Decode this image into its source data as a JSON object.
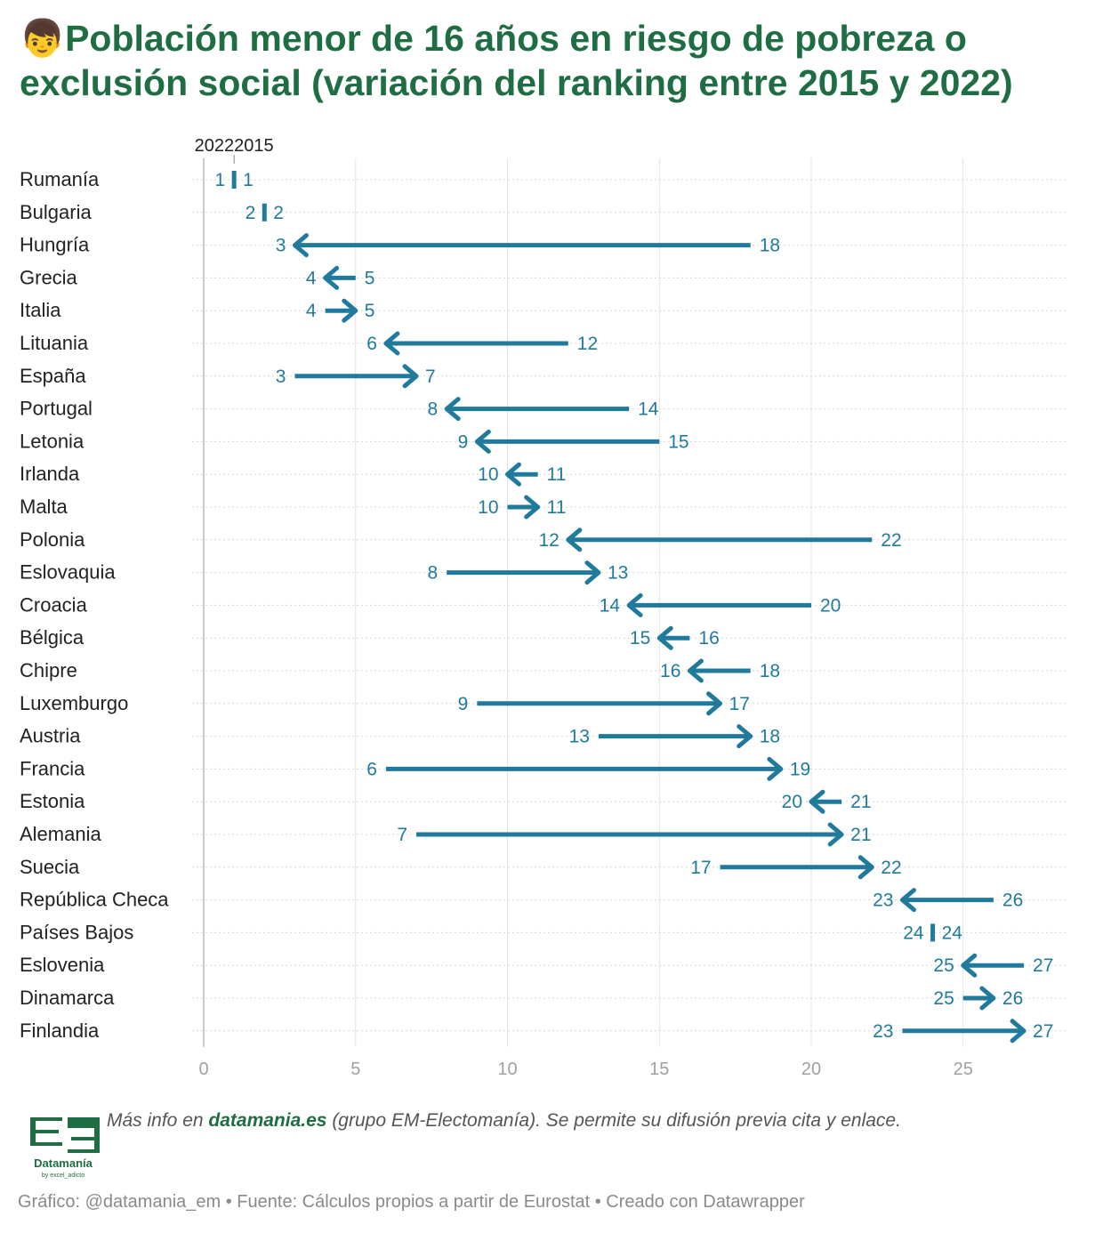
{
  "header": {
    "emoji": "👦",
    "title": "Población menor de 16 años en riesgo de pobreza o exclusión social (variación del ranking entre 2015 y 2022)"
  },
  "chart_data": {
    "type": "arrow-range",
    "series_labels": {
      "from": "2015",
      "to": "2022"
    },
    "xlim": [
      0,
      28
    ],
    "xticks": [
      0,
      5,
      10,
      15,
      20,
      25
    ],
    "color": "#1f7a9c",
    "rows": [
      {
        "country": "Rumanía",
        "from": 1,
        "to": 1
      },
      {
        "country": "Bulgaria",
        "from": 2,
        "to": 2
      },
      {
        "country": "Hungría",
        "from": 18,
        "to": 3
      },
      {
        "country": "Grecia",
        "from": 5,
        "to": 4
      },
      {
        "country": "Italia",
        "from": 4,
        "to": 5
      },
      {
        "country": "Lituania",
        "from": 12,
        "to": 6
      },
      {
        "country": "España",
        "from": 3,
        "to": 7
      },
      {
        "country": "Portugal",
        "from": 14,
        "to": 8
      },
      {
        "country": "Letonia",
        "from": 15,
        "to": 9
      },
      {
        "country": "Irlanda",
        "from": 11,
        "to": 10
      },
      {
        "country": "Malta",
        "from": 10,
        "to": 11
      },
      {
        "country": "Polonia",
        "from": 22,
        "to": 12
      },
      {
        "country": "Eslovaquia",
        "from": 8,
        "to": 13
      },
      {
        "country": "Croacia",
        "from": 20,
        "to": 14
      },
      {
        "country": "Bélgica",
        "from": 16,
        "to": 15
      },
      {
        "country": "Chipre",
        "from": 18,
        "to": 16
      },
      {
        "country": "Luxemburgo",
        "from": 9,
        "to": 17
      },
      {
        "country": "Austria",
        "from": 13,
        "to": 18
      },
      {
        "country": "Francia",
        "from": 6,
        "to": 19
      },
      {
        "country": "Estonia",
        "from": 21,
        "to": 20
      },
      {
        "country": "Alemania",
        "from": 7,
        "to": 21
      },
      {
        "country": "Suecia",
        "from": 17,
        "to": 22
      },
      {
        "country": "República Checa",
        "from": 26,
        "to": 23
      },
      {
        "country": "Países Bajos",
        "from": 24,
        "to": 24
      },
      {
        "country": "Eslovenia",
        "from": 27,
        "to": 25
      },
      {
        "country": "Dinamarca",
        "from": 25,
        "to": 26
      },
      {
        "country": "Finlandia",
        "from": 23,
        "to": 27
      }
    ]
  },
  "footer": {
    "note_prefix": "Más info en ",
    "note_link": "datamania.es",
    "note_suffix": " (grupo EM-Electomanía). Se permite su difusión previa cita y enlace.",
    "credits": "Gráfico: @datamania_em • Fuente: Cálculos propios a partir de Eurostat • Creado con Datawrapper",
    "logo_name": "Datamanía",
    "logo_sub": "by excel_adicto"
  }
}
